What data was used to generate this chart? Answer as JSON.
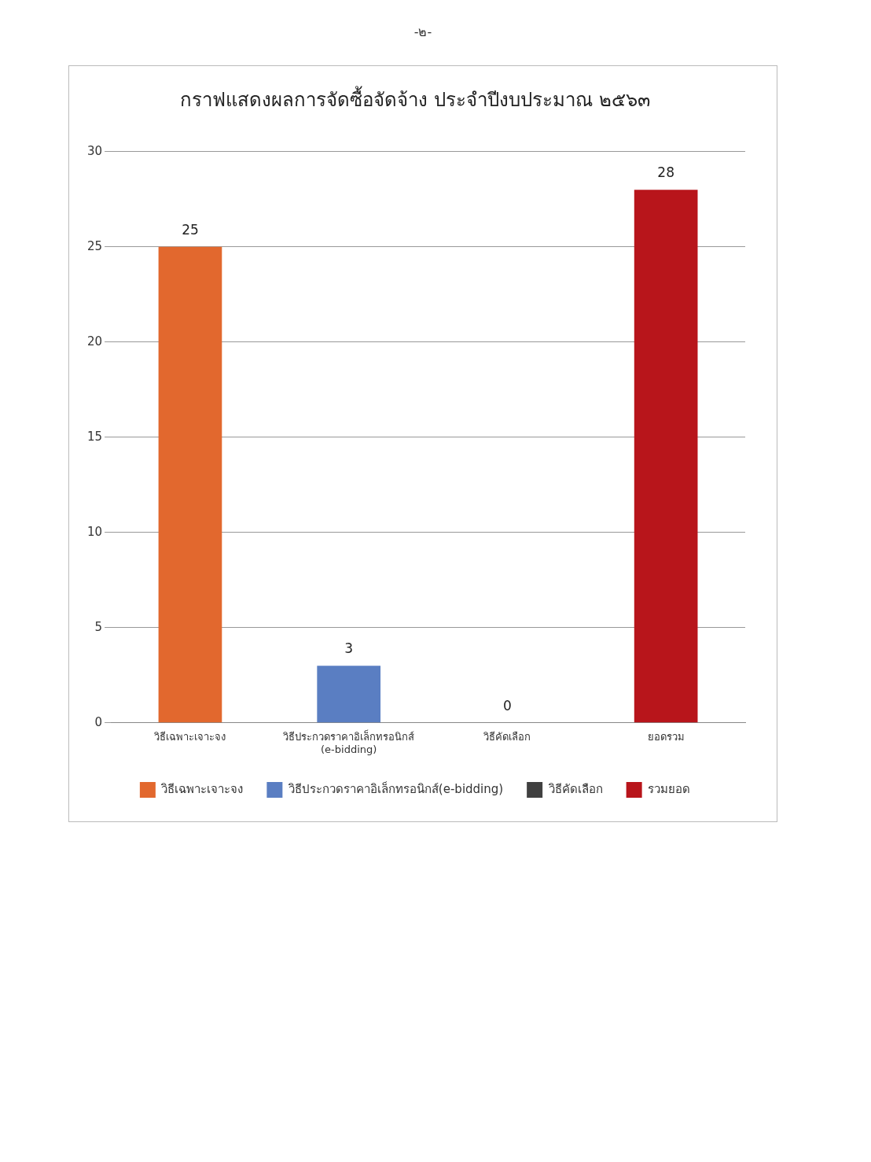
{
  "chart_data": {
    "type": "bar",
    "title": "กราฟแสดงผลการจัดซื้อจัดจ้าง ประจำปีงบประมาณ ๒๕๖๓",
    "annotations": [
      "-๒-"
    ],
    "categories": [
      "วิธีเฉพาะเจาะจง",
      "วิธีประกวดราคาอิเล็กทรอนิกส์\n(e-bidding)",
      "วิธีคัดเลือก",
      "ยอดรวม"
    ],
    "series": [
      {
        "name": "วิธีเฉพาะเจาะจง",
        "color": "#e2682e",
        "values": [
          25,
          null,
          null,
          null
        ]
      },
      {
        "name": "วิธีประกวดราคาอิเล็กทรอนิกส์(e-bidding)",
        "color": "#5a7ec2",
        "values": [
          null,
          3,
          null,
          null
        ]
      },
      {
        "name": "วิธีคัดเลือก",
        "color": "#404040",
        "values": [
          null,
          null,
          0,
          null
        ]
      },
      {
        "name": "รวมยอด",
        "color": "#b8151b",
        "values": [
          null,
          null,
          null,
          28
        ]
      }
    ],
    "ylim": [
      0,
      30
    ],
    "yticks": [
      0,
      5,
      10,
      15,
      20,
      25,
      30
    ],
    "grid": "y",
    "legend": "bottom",
    "data_labels": true
  }
}
